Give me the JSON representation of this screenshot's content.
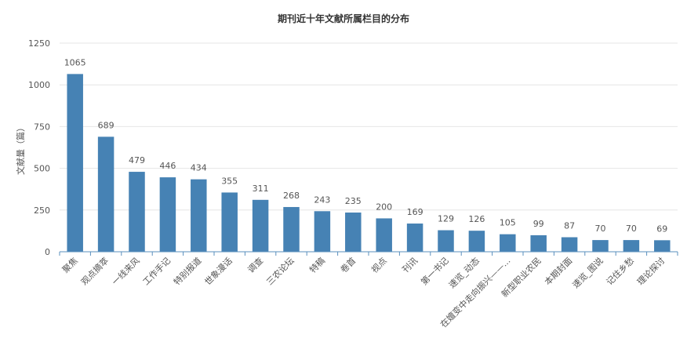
{
  "chart_data": {
    "type": "bar",
    "title": "期刊近十年文献所属栏目的分布",
    "xlabel": "",
    "ylabel": "文献量（篇）",
    "ylim": [
      0,
      1250
    ],
    "yticks": [
      0,
      250,
      500,
      750,
      1000,
      1250
    ],
    "grid": true,
    "legend": "none",
    "bar_color": "#4682b4",
    "categories": [
      "聚焦",
      "观点摘萃",
      "一线来风",
      "工作手记",
      "特别报道",
      "世象漫话",
      "调查",
      "三农论坛",
      "特稿",
      "卷首",
      "视点",
      "刊讯",
      "第一书记",
      "速览_动态",
      "在嬗变中走向振兴——...",
      "新型职业农民",
      "本期封面",
      "速览_图说",
      "记住乡愁",
      "理论探讨"
    ],
    "values": [
      1065,
      689,
      479,
      446,
      434,
      355,
      311,
      268,
      243,
      235,
      200,
      169,
      129,
      126,
      105,
      99,
      87,
      70,
      70,
      69
    ]
  }
}
